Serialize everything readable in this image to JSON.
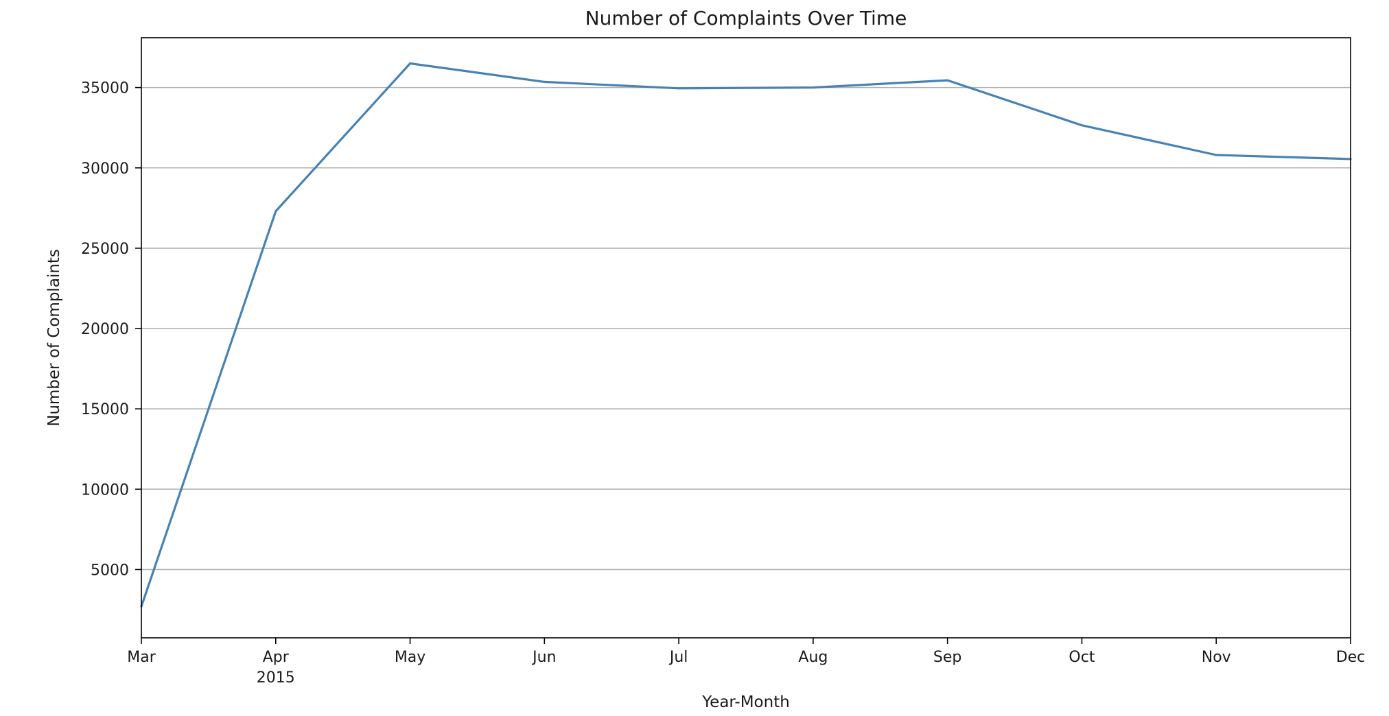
{
  "chart_data": {
    "type": "line",
    "title": "Number of Complaints Over Time",
    "xlabel": "Year-Month",
    "ylabel": "Number of Complaints",
    "x": [
      "2015-03",
      "2015-04",
      "2015-05",
      "2015-06",
      "2015-07",
      "2015-08",
      "2015-09",
      "2015-10",
      "2015-11",
      "2015-12"
    ],
    "x_tick_labels": [
      "Mar",
      "Apr",
      "May",
      "Jun",
      "Jul",
      "Aug",
      "Sep",
      "Oct",
      "Nov",
      "Dec"
    ],
    "x_year_label": "2015",
    "series": [
      {
        "values": [
          2700,
          27300,
          36500,
          35350,
          34950,
          35000,
          35450,
          32650,
          30800,
          30550
        ],
        "color": "#4682b4"
      }
    ],
    "y_ticks": [
      5000,
      10000,
      15000,
      20000,
      25000,
      30000,
      35000
    ],
    "ylim": [
      750,
      38100
    ],
    "grid": {
      "y": true,
      "x": false
    },
    "legend": "none"
  }
}
